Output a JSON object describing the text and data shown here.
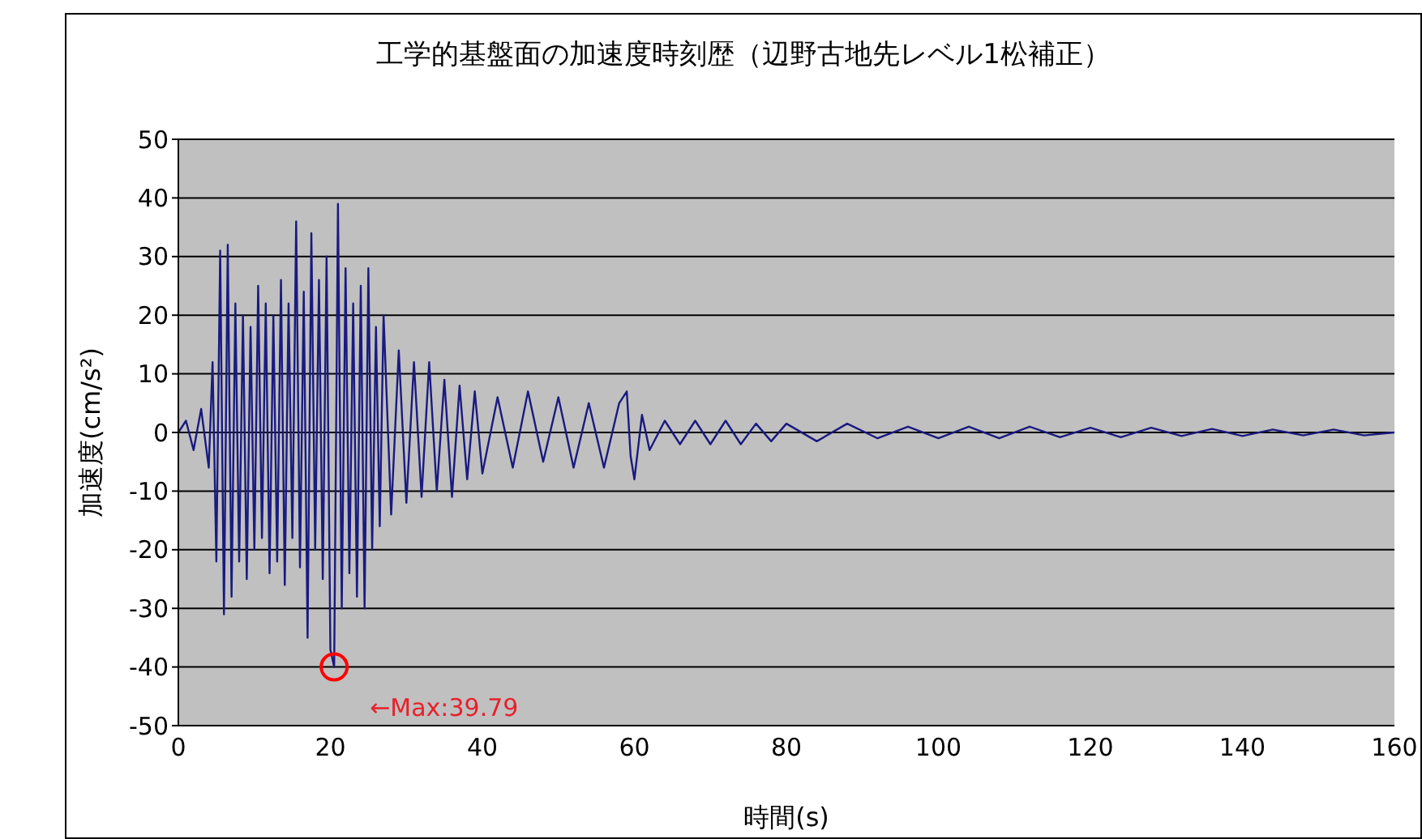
{
  "chart_data": {
    "type": "line",
    "title": "工学的基盤面の加速度時刻歴（辺野古地先レベル1松補正）",
    "xlabel": "時間(s)",
    "ylabel": "加速度(cm/s²)",
    "x": [
      0,
      1,
      2,
      3,
      4,
      4.5,
      5,
      5.5,
      6,
      6.5,
      7,
      7.5,
      8,
      8.5,
      9,
      9.5,
      10,
      10.5,
      11,
      11.5,
      12,
      12.5,
      13,
      13.5,
      14,
      14.5,
      15,
      15.5,
      16,
      16.5,
      17,
      17.5,
      18,
      18.5,
      19,
      19.5,
      20,
      20.5,
      21,
      21.5,
      22,
      22.5,
      23,
      23.5,
      24,
      24.5,
      25,
      25.5,
      26,
      26.5,
      27,
      28,
      29,
      30,
      31,
      32,
      33,
      34,
      35,
      36,
      37,
      38,
      39,
      40,
      42,
      44,
      46,
      48,
      50,
      52,
      54,
      56,
      58,
      59,
      59.5,
      60,
      61,
      62,
      64,
      66,
      68,
      70,
      72,
      74,
      76,
      78,
      80,
      84,
      88,
      92,
      96,
      100,
      104,
      108,
      112,
      116,
      120,
      124,
      128,
      132,
      136,
      140,
      144,
      148,
      152,
      156,
      160
    ],
    "series": [
      {
        "color": "#1a1a80",
        "values": [
          0,
          2,
          -3,
          4,
          -6,
          12,
          -22,
          31,
          -31,
          32,
          -28,
          22,
          -22,
          20,
          -25,
          18,
          -20,
          25,
          -18,
          22,
          -24,
          20,
          -22,
          26,
          -26,
          22,
          -18,
          36,
          -23,
          24,
          -35,
          34,
          -20,
          26,
          -25,
          30,
          -37,
          -40,
          39,
          -30,
          28,
          -24,
          22,
          -28,
          25,
          -30,
          28,
          -20,
          18,
          -16,
          20,
          -14,
          14,
          -12,
          12,
          -11,
          12,
          -10,
          9,
          -11,
          8,
          -8,
          7,
          -7,
          6,
          -6,
          7,
          -5,
          6,
          -6,
          5,
          -6,
          5,
          7,
          -4,
          -8,
          3,
          -3,
          2,
          -2,
          2,
          -2,
          2,
          -2,
          1.5,
          -1.5,
          1.5,
          -1.5,
          1.5,
          -1,
          1,
          -1,
          1,
          -1,
          1,
          -0.8,
          0.8,
          -0.8,
          0.8,
          -0.6,
          0.6,
          -0.6,
          0.5,
          -0.5,
          0.5,
          -0.5,
          0
        ]
      }
    ],
    "xlim": [
      0,
      160
    ],
    "xticks": [
      0,
      20,
      40,
      60,
      80,
      100,
      120,
      140,
      160
    ],
    "ylim": [
      -50,
      50
    ],
    "yticks": [
      -50,
      -40,
      -30,
      -20,
      -10,
      0,
      10,
      20,
      30,
      40,
      50
    ],
    "grid": "y",
    "legend": false,
    "marker": "none",
    "line_style": "solid",
    "annotations": [
      {
        "text": "←Max:39.79",
        "x": 20.5,
        "y": -40
      }
    ]
  }
}
